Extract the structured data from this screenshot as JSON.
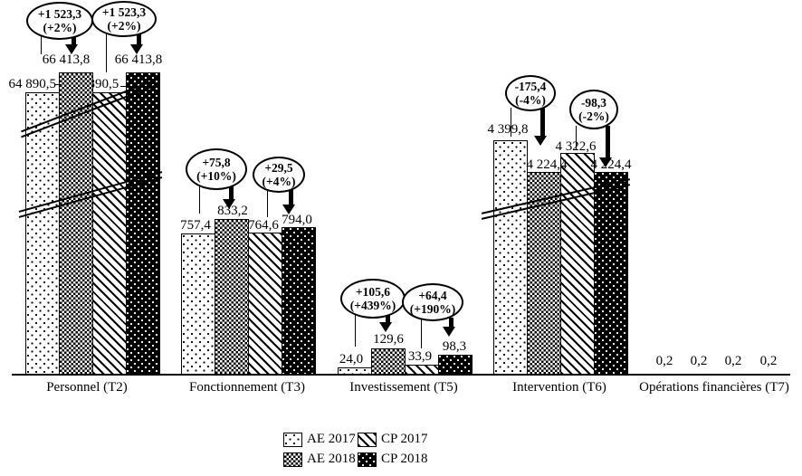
{
  "chart_data": {
    "type": "bar",
    "title": "",
    "categories": [
      "Personnel (T2)",
      "Fonctionnement (T3)",
      "Investissement (T5)",
      "Intervention (T6)",
      "Opérations financières (T7)"
    ],
    "series": [
      {
        "name": "AE 2017",
        "pattern": "dots-on-white",
        "values": [
          64890.5,
          757.4,
          24.0,
          4399.8,
          0.2
        ]
      },
      {
        "name": "AE 2018",
        "pattern": "fine-checker-gray",
        "values": [
          66413.8,
          833.2,
          129.6,
          4224.4,
          0.2
        ]
      },
      {
        "name": "CP 2017",
        "pattern": "diagonal-hatch",
        "values": [
          64890.5,
          764.6,
          33.9,
          4322.6,
          0.2
        ]
      },
      {
        "name": "CP 2018",
        "pattern": "white-dots-on-black",
        "values": [
          66413.8,
          794.0,
          98.3,
          4224.4,
          0.2
        ]
      }
    ],
    "value_labels": [
      [
        "64 890,5",
        "66 413,8",
        "64 890,5",
        "66 413,8"
      ],
      [
        "757,4",
        "833,2",
        "764,6",
        "794,0"
      ],
      [
        "24,0",
        "129,6",
        "33,9",
        "98,3"
      ],
      [
        "4 399,8",
        "4 224,4",
        "4 322,6",
        "4 224,4"
      ],
      [
        "0,2",
        "0,2",
        "0,2",
        "0,2"
      ]
    ],
    "annotations": [
      {
        "group": "Personnel (T2)",
        "bubbles": [
          {
            "line1": "+1 523,3",
            "line2": "(+2%)"
          },
          {
            "line1": "+1 523,3",
            "line2": "(+2%)"
          }
        ]
      },
      {
        "group": "Fonctionnement (T3)",
        "bubbles": [
          {
            "line1": "+75,8",
            "line2": "(+10%)"
          },
          {
            "line1": "+29,5",
            "line2": "(+4%)"
          }
        ]
      },
      {
        "group": "Investissement (T5)",
        "bubbles": [
          {
            "line1": "+105,6",
            "line2": "(+439%)"
          },
          {
            "line1": "+64,4",
            "line2": "(+190%)"
          }
        ]
      },
      {
        "group": "Intervention (T6)",
        "bubbles": [
          {
            "line1": "-175,4",
            "line2": "(-4%)"
          },
          {
            "line1": "-98,3",
            "line2": "(-2%)"
          }
        ]
      }
    ],
    "legend": [
      "AE 2017",
      "AE 2018",
      "CP 2017",
      "CP 2018"
    ],
    "legend_position": "bottom-center",
    "axis_breaks_on": [
      "Personnel (T2)",
      "Intervention (T6)"
    ],
    "grid": "off",
    "colors": {
      "ink": "#000000",
      "background": "#ffffff"
    }
  }
}
